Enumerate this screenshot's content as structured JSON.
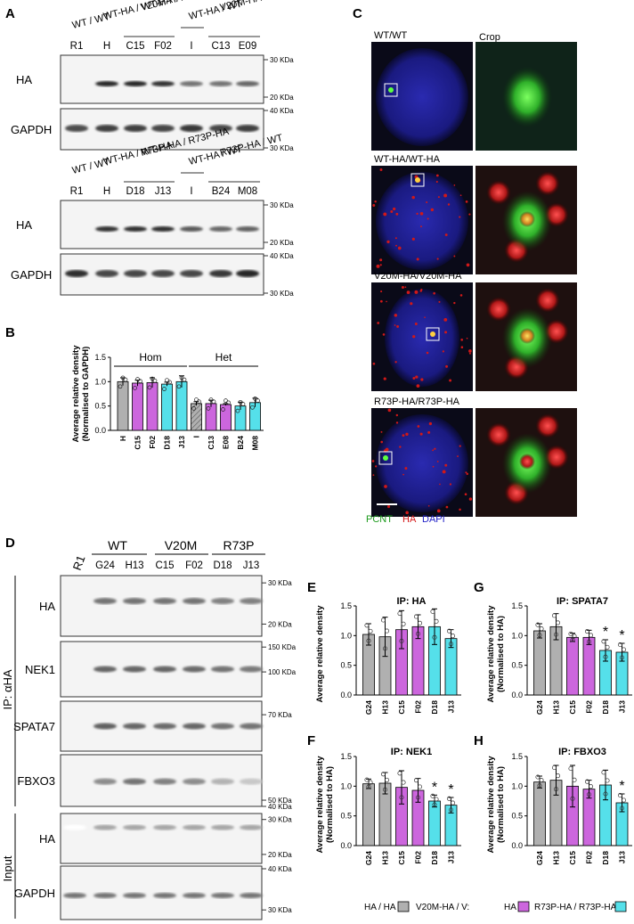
{
  "panelA": {
    "letter": "A",
    "blot1": {
      "genotypes": [
        "WT / WT",
        "WT-HA / WT-HA",
        "V20M-HA / V20M-HA",
        "WT-HA / WT",
        "V20M-HA / WT"
      ],
      "lanes": [
        "R1",
        "H",
        "C15",
        "F02",
        "I",
        "C13",
        "E09"
      ],
      "ha_label": "HA",
      "gapdh_label": "GAPDH",
      "ha_markers": [
        "30 KDa",
        "20 KDa"
      ],
      "gapdh_markers": [
        "40 KDa",
        "30 KDa"
      ]
    },
    "blot2": {
      "genotypes": [
        "WT / WT",
        "WT-HA / WT-HA",
        "R73P-HA / R73P-HA",
        "WT-HA / WT",
        "R73P-HA / WT"
      ],
      "lanes": [
        "R1",
        "H",
        "D18",
        "J13",
        "I",
        "B24",
        "M08"
      ],
      "ha_label": "HA",
      "gapdh_label": "GAPDH",
      "ha_markers": [
        "30 KDa",
        "20 KDa"
      ],
      "gapdh_markers": [
        "40 KDa",
        "30 KDa"
      ]
    }
  },
  "panelB": {
    "letter": "B",
    "chart_data": {
      "type": "bar",
      "categories": [
        "H",
        "C15",
        "F02",
        "D18",
        "J13",
        "I",
        "C13",
        "E08",
        "B24",
        "M08"
      ],
      "values": [
        1.0,
        0.97,
        0.98,
        0.95,
        1.0,
        0.55,
        0.55,
        0.53,
        0.5,
        0.57
      ],
      "errors": [
        0.08,
        0.06,
        0.1,
        0.04,
        0.12,
        0.04,
        0.07,
        0.02,
        0.08,
        0.09
      ],
      "ylabel": "Average relative density (Normalised to GAPDH)",
      "ylim": [
        0,
        1.5
      ],
      "yticks": [
        "0.0",
        "0.5",
        "1.0",
        "1.5"
      ],
      "groups": [
        {
          "label": "Hom"
        },
        {
          "label": "Het"
        }
      ],
      "colors": [
        "#b0b0b0",
        "#cc66dd",
        "#cc66dd",
        "#55e0ea",
        "#55e0ea",
        "#b0b0b0",
        "#cc66dd",
        "#cc66dd",
        "#55e0ea",
        "#55e0ea"
      ]
    }
  },
  "panelC": {
    "letter": "C",
    "crop_label": "Crop",
    "rows": [
      "WT/WT",
      "WT-HA/WT-HA",
      "V20M-HA/V20M-HA",
      "R73P-HA/R73P-HA"
    ],
    "legend": {
      "pcnt": "PCNT",
      "ha": "HA",
      "dapi": "DAPI"
    }
  },
  "panelD": {
    "letter": "D",
    "groups": [
      "WT",
      "V20M",
      "R73P"
    ],
    "lanes": [
      "R1",
      "G24",
      "H13",
      "C15",
      "F02",
      "D18",
      "J13"
    ],
    "ip_label": "IP: αHA",
    "input_label": "Input",
    "ip_blots": [
      {
        "label": "HA",
        "markers": [
          "30 KDa",
          "20 KDa"
        ]
      },
      {
        "label": "NEK1",
        "markers": [
          "150 KDa",
          "100 KDa"
        ]
      },
      {
        "label": "SPATA7",
        "markers": [
          "70 KDa"
        ]
      },
      {
        "label": "FBXO3",
        "markers": [
          "50 KDa",
          "40 KDa"
        ]
      }
    ],
    "input_blots": [
      {
        "label": "HA",
        "markers": [
          "30 KDa",
          "20 KDa"
        ]
      },
      {
        "label": "GAPDH",
        "markers": [
          "40 KDa",
          "30 KDa"
        ]
      }
    ]
  },
  "small_charts": [
    {
      "letter": "E",
      "chart_data": {
        "type": "bar",
        "title": "IP: HA",
        "ylabel": "Average relative density",
        "categories": [
          "G24",
          "H13",
          "C15",
          "F02",
          "D18",
          "J13"
        ],
        "values": [
          1.02,
          0.98,
          1.1,
          1.15,
          1.15,
          0.95
        ],
        "errors": [
          0.18,
          0.33,
          0.32,
          0.2,
          0.3,
          0.15
        ],
        "stars": [
          "",
          "",
          "",
          "",
          "",
          ""
        ],
        "ylim": [
          0,
          1.5
        ],
        "yticks": [
          "0.0",
          "0.5",
          "1.0",
          "1.5"
        ]
      }
    },
    {
      "letter": "G",
      "chart_data": {
        "type": "bar",
        "title": "IP: SPATA7",
        "ylabel": "Average relative density (Normalised to HA)",
        "categories": [
          "G24",
          "H13",
          "C15",
          "F02",
          "D18",
          "J13"
        ],
        "values": [
          1.08,
          1.15,
          0.97,
          0.97,
          0.75,
          0.72
        ],
        "errors": [
          0.12,
          0.22,
          0.07,
          0.12,
          0.18,
          0.15
        ],
        "stars": [
          "",
          "",
          "",
          "",
          "*",
          "*"
        ],
        "ylim": [
          0,
          1.5
        ],
        "yticks": [
          "0.0",
          "0.5",
          "1.0",
          "1.5"
        ]
      }
    },
    {
      "letter": "F",
      "chart_data": {
        "type": "bar",
        "title": "IP: NEK1",
        "ylabel": "Average relative density (Normalised to HA)",
        "categories": [
          "G24",
          "H13",
          "C15",
          "F02",
          "D18",
          "J13"
        ],
        "values": [
          1.04,
          1.05,
          0.98,
          0.93,
          0.75,
          0.68
        ],
        "errors": [
          0.08,
          0.18,
          0.28,
          0.2,
          0.1,
          0.13
        ],
        "stars": [
          "",
          "",
          "",
          "",
          "*",
          "*"
        ],
        "ylim": [
          0,
          1.5
        ],
        "yticks": [
          "0.0",
          "0.5",
          "1.0",
          "1.5"
        ]
      }
    },
    {
      "letter": "H",
      "chart_data": {
        "type": "bar",
        "title": "IP: FBXO3",
        "ylabel": "Average relative density (Normalised to HA)",
        "categories": [
          "G24",
          "H13",
          "C15",
          "F02",
          "D18",
          "J13"
        ],
        "values": [
          1.07,
          1.1,
          1.0,
          0.95,
          1.02,
          0.72
        ],
        "errors": [
          0.1,
          0.25,
          0.35,
          0.15,
          0.25,
          0.15
        ],
        "stars": [
          "",
          "",
          "",
          "",
          "",
          "*"
        ],
        "ylim": [
          0,
          1.5
        ],
        "yticks": [
          "0.0",
          "0.5",
          "1.0",
          "1.5"
        ]
      }
    }
  ],
  "legend": [
    {
      "label": "HA / HA",
      "color": "#b0b0b0"
    },
    {
      "label": "V20M-HA / V:",
      "color": "#b0b0b0"
    },
    {
      "label": "HA",
      "color": "#cc66dd"
    },
    {
      "label": "R73P-HA / R73P-HA",
      "color": "#55e0ea"
    }
  ]
}
